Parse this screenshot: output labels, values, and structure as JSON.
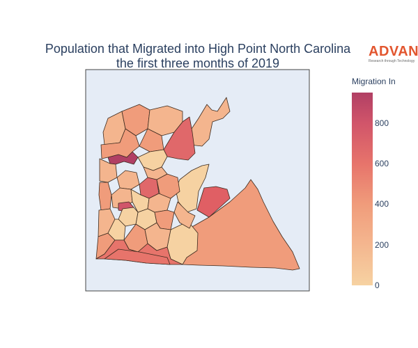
{
  "title": {
    "line1": "Population that Migrated into High Point North Carolina",
    "line2": "the first three months of 2019"
  },
  "logo": {
    "word": "ADVAN",
    "tagline": "Research through Technology"
  },
  "colorbar": {
    "title": "Migration In",
    "range": [
      0,
      950
    ],
    "ticks": [
      {
        "value": 0,
        "label": "0"
      },
      {
        "value": 200,
        "label": "200"
      },
      {
        "value": 400,
        "label": "400"
      },
      {
        "value": 600,
        "label": "600"
      },
      {
        "value": 800,
        "label": "800"
      }
    ],
    "colorscale": [
      "#f6d2a2",
      "#f4b58e",
      "#f09c7b",
      "#e7746b",
      "#d1556a",
      "#b13f64"
    ]
  },
  "colors": {
    "map_background": "#e5ecf6",
    "region_border": "#3b2a1e",
    "title": "#2a3f5f",
    "brand": "#e2562f"
  }
}
